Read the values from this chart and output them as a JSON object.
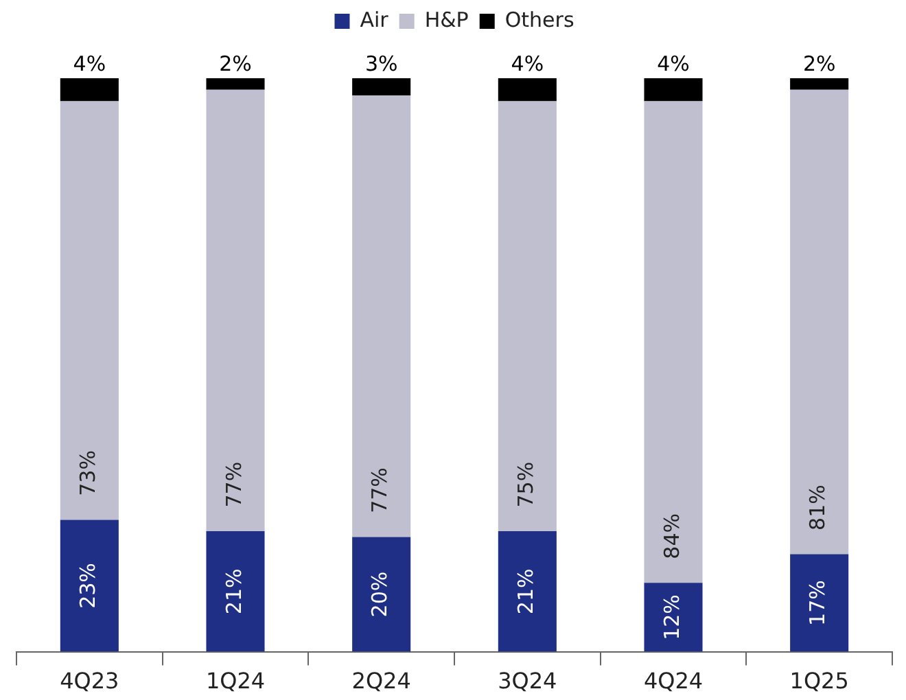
{
  "chart_data": {
    "type": "bar",
    "stacked": true,
    "legend": "top",
    "tick_labels": "x",
    "categories": [
      "4Q23",
      "1Q24",
      "2Q24",
      "3Q24",
      "4Q24",
      "1Q25"
    ],
    "series": [
      {
        "name": "Air",
        "color": "#1f2f86",
        "values": [
          23,
          21,
          20,
          21,
          12,
          17
        ],
        "value_labels": [
          "23%",
          "21%",
          "20%",
          "21%",
          "12%",
          "17%"
        ]
      },
      {
        "name": "H&P",
        "color": "#c0bfd0",
        "values": [
          73,
          77,
          77,
          75,
          84,
          81
        ],
        "value_labels": [
          "73%",
          "77%",
          "77%",
          "75%",
          "84%",
          "81%"
        ]
      },
      {
        "name": "Others",
        "color": "#000000",
        "values": [
          4,
          2,
          3,
          4,
          4,
          2
        ],
        "value_labels": [
          "4%",
          "2%",
          "3%",
          "4%",
          "4%",
          "2%"
        ]
      }
    ]
  }
}
